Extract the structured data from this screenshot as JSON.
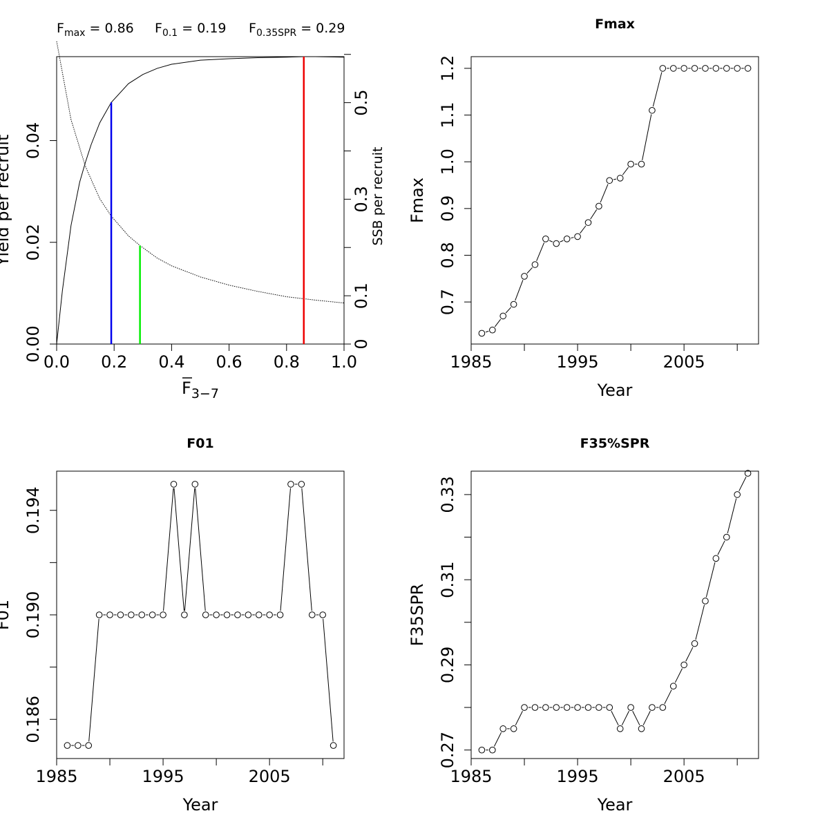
{
  "chart_data": [
    {
      "type": "line",
      "panel": "ypr",
      "header": [
        {
          "base": "F",
          "sub": "max",
          "rest": " = 0.86"
        },
        {
          "base": "F",
          "sub": "0.1",
          "rest": " = 0.19"
        },
        {
          "base": "F",
          "sub": "0.35SPR",
          "rest": " = 0.29"
        }
      ],
      "xlabel": {
        "base": "F",
        "sub": "3−7"
      },
      "ylabel": "Yield per recruit",
      "y2label": "SSB per recruit",
      "xlim": [
        0,
        1
      ],
      "ylim": [
        0,
        0.0565
      ],
      "y2lim": [
        0,
        0.5953
      ],
      "xticks": [
        0.0,
        0.2,
        0.4,
        0.6,
        0.8,
        1.0
      ],
      "xtick_labels": [
        "0.0",
        "0.2",
        "0.4",
        "0.6",
        "0.8",
        "1.0"
      ],
      "yticks": [
        0.0,
        0.02,
        0.04
      ],
      "ytick_labels": [
        "0.00",
        "0.02",
        "0.04"
      ],
      "y2ticks": [
        0,
        0.1,
        0.2,
        0.3,
        0.4,
        0.5,
        0.6
      ],
      "y2tick_labels": [
        "0",
        "0.1",
        "",
        "0.3",
        "",
        "0.5",
        ""
      ],
      "ypr_curve": {
        "x": [
          0,
          0.02,
          0.05,
          0.08,
          0.1,
          0.12,
          0.15,
          0.19,
          0.25,
          0.3,
          0.35,
          0.4,
          0.5,
          0.6,
          0.7,
          0.8,
          0.86,
          0.9,
          1.0
        ],
        "y": [
          0,
          0.0105,
          0.0233,
          0.0318,
          0.0357,
          0.0392,
          0.0435,
          0.0475,
          0.0512,
          0.053,
          0.0542,
          0.055,
          0.0558,
          0.0561,
          0.0563,
          0.0564,
          0.0565,
          0.0565,
          0.0564
        ]
      },
      "spr_curve": {
        "x": [
          0,
          0.05,
          0.1,
          0.15,
          0.19,
          0.25,
          0.29,
          0.35,
          0.4,
          0.5,
          0.6,
          0.7,
          0.8,
          0.9,
          1.0
        ],
        "y": [
          0.627,
          0.465,
          0.368,
          0.301,
          0.265,
          0.224,
          0.204,
          0.178,
          0.162,
          0.139,
          0.122,
          0.109,
          0.098,
          0.091,
          0.085
        ]
      },
      "reference_lines": [
        {
          "name": "Fmax",
          "x": 0.86,
          "y": 0.0565,
          "axis": "ypr",
          "color": "#ee0000"
        },
        {
          "name": "F0.1",
          "x": 0.19,
          "y": 0.0475,
          "axis": "ypr",
          "color": "#0000ee"
        },
        {
          "name": "F0.35SPR",
          "x": 0.29,
          "y": 0.204,
          "axis": "spr",
          "color": "#00ee00"
        }
      ]
    },
    {
      "type": "line",
      "panel": "fmax",
      "title": "Fmax",
      "xlabel": "Year",
      "ylabel": "Fmax",
      "xlim": [
        1985,
        2012
      ],
      "ylim": [
        0.61,
        1.225
      ],
      "xticks": [
        1985,
        1990,
        1995,
        2000,
        2005,
        2010
      ],
      "xtick_labels": [
        "1985",
        "",
        "1995",
        "",
        "2005",
        ""
      ],
      "yticks": [
        0.7,
        0.8,
        0.9,
        1.0,
        1.1,
        1.2
      ],
      "ytick_labels": [
        "0.7",
        "0.8",
        "0.9",
        "1.0",
        "1.1",
        "1.2"
      ],
      "x": [
        1986,
        1987,
        1988,
        1989,
        1990,
        1991,
        1992,
        1993,
        1994,
        1995,
        1996,
        1997,
        1998,
        1999,
        2000,
        2001,
        2002,
        2003,
        2004,
        2005,
        2006,
        2007,
        2008,
        2009,
        2010,
        2011
      ],
      "y": [
        0.633,
        0.64,
        0.67,
        0.695,
        0.755,
        0.78,
        0.835,
        0.825,
        0.835,
        0.84,
        0.87,
        0.905,
        0.96,
        0.965,
        0.995,
        0.995,
        1.11,
        1.2,
        1.2,
        1.2,
        1.2,
        1.2,
        1.2,
        1.2,
        1.2,
        1.2
      ]
    },
    {
      "type": "line",
      "panel": "f01",
      "title": "F01",
      "xlabel": "Year",
      "ylabel": "F01",
      "xlim": [
        1985,
        2012
      ],
      "ylim": [
        0.1845,
        0.1955
      ],
      "xticks": [
        1985,
        1990,
        1995,
        2000,
        2005,
        2010
      ],
      "xtick_labels": [
        "1985",
        "",
        "1995",
        "",
        "2005",
        ""
      ],
      "yticks": [
        0.186,
        0.188,
        0.19,
        0.192,
        0.194
      ],
      "ytick_labels": [
        "0.186",
        "",
        "0.190",
        "",
        "0.194"
      ],
      "x": [
        1986,
        1987,
        1988,
        1989,
        1990,
        1991,
        1992,
        1993,
        1994,
        1995,
        1996,
        1997,
        1998,
        1999,
        2000,
        2001,
        2002,
        2003,
        2004,
        2005,
        2006,
        2007,
        2008,
        2009,
        2010,
        2011
      ],
      "y": [
        0.185,
        0.185,
        0.185,
        0.19,
        0.19,
        0.19,
        0.19,
        0.19,
        0.19,
        0.19,
        0.195,
        0.19,
        0.195,
        0.19,
        0.19,
        0.19,
        0.19,
        0.19,
        0.19,
        0.19,
        0.19,
        0.195,
        0.195,
        0.19,
        0.19,
        0.185
      ]
    },
    {
      "type": "line",
      "panel": "f35spr",
      "title": "F35%SPR",
      "xlabel": "Year",
      "ylabel": "F35SPR",
      "xlim": [
        1985,
        2012
      ],
      "ylim": [
        0.268,
        0.3355
      ],
      "xticks": [
        1985,
        1990,
        1995,
        2000,
        2005,
        2010
      ],
      "xtick_labels": [
        "1985",
        "",
        "1995",
        "",
        "2005",
        ""
      ],
      "yticks": [
        0.27,
        0.28,
        0.29,
        0.3,
        0.31,
        0.32,
        0.33
      ],
      "ytick_labels": [
        "0.27",
        "",
        "0.29",
        "",
        "0.31",
        "",
        "0.33"
      ],
      "x": [
        1986,
        1987,
        1988,
        1989,
        1990,
        1991,
        1992,
        1993,
        1994,
        1995,
        1996,
        1997,
        1998,
        1999,
        2000,
        2001,
        2002,
        2003,
        2004,
        2005,
        2006,
        2007,
        2008,
        2009,
        2010,
        2011
      ],
      "y": [
        0.27,
        0.27,
        0.275,
        0.275,
        0.28,
        0.28,
        0.28,
        0.28,
        0.28,
        0.28,
        0.28,
        0.28,
        0.28,
        0.275,
        0.28,
        0.275,
        0.28,
        0.28,
        0.285,
        0.29,
        0.295,
        0.305,
        0.315,
        0.32,
        0.33,
        0.335
      ]
    }
  ]
}
